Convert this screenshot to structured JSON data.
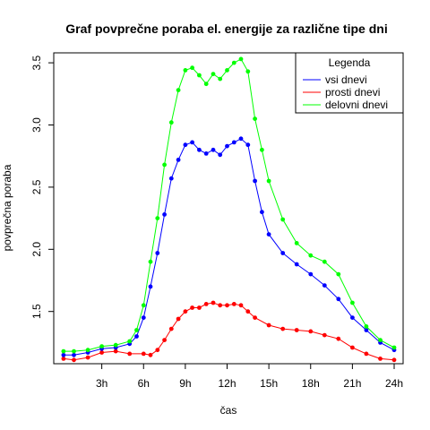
{
  "chart_data": {
    "type": "line",
    "title": "Graf povprečne poraba el. energije za različne tipe dni",
    "xlabel": "čas",
    "ylabel": "povprečna poraba",
    "xlim": [
      0,
      24
    ],
    "ylim": [
      1.08,
      3.58
    ],
    "xticks": [
      {
        "value": 3,
        "label": "3h"
      },
      {
        "value": 6,
        "label": "6h"
      },
      {
        "value": 9,
        "label": "9h"
      },
      {
        "value": 12,
        "label": "12h"
      },
      {
        "value": 15,
        "label": "15h"
      },
      {
        "value": 18,
        "label": "18h"
      },
      {
        "value": 21,
        "label": "21h"
      },
      {
        "value": 24,
        "label": "24h"
      }
    ],
    "yticks": [
      {
        "value": 1.5,
        "label": "1.5"
      },
      {
        "value": 2.0,
        "label": "2.0"
      },
      {
        "value": 2.5,
        "label": "2.5"
      },
      {
        "value": 3.0,
        "label": "3.0"
      },
      {
        "value": 3.5,
        "label": "3.5"
      }
    ],
    "grid": false,
    "legend": {
      "title": "Legenda",
      "position": "top-right"
    },
    "series": [
      {
        "name": "vsi dnevi",
        "color": "#0000ff",
        "x": [
          0.25,
          1,
          2,
          3,
          4,
          5,
          5.5,
          6,
          6.5,
          7,
          7.5,
          8,
          8.5,
          9,
          9.5,
          10,
          10.5,
          11,
          11.5,
          12,
          12.5,
          13,
          13.5,
          14,
          14.5,
          15,
          16,
          17,
          18,
          19,
          20,
          21,
          22,
          23,
          24
        ],
        "y": [
          1.15,
          1.15,
          1.17,
          1.2,
          1.21,
          1.24,
          1.3,
          1.45,
          1.7,
          1.97,
          2.28,
          2.57,
          2.72,
          2.84,
          2.86,
          2.8,
          2.77,
          2.8,
          2.76,
          2.83,
          2.86,
          2.89,
          2.84,
          2.55,
          2.3,
          2.12,
          1.97,
          1.88,
          1.8,
          1.71,
          1.6,
          1.45,
          1.35,
          1.25,
          1.19
        ]
      },
      {
        "name": "prosti dnevi",
        "color": "#ff0000",
        "x": [
          0.25,
          1,
          2,
          3,
          4,
          5,
          6,
          6.5,
          7,
          7.5,
          8,
          8.5,
          9,
          9.5,
          10,
          10.5,
          11,
          11.5,
          12,
          12.5,
          13,
          13.5,
          14,
          15,
          16,
          17,
          18,
          19,
          20,
          21,
          22,
          23,
          24
        ],
        "y": [
          1.12,
          1.11,
          1.13,
          1.17,
          1.18,
          1.16,
          1.16,
          1.15,
          1.19,
          1.27,
          1.36,
          1.44,
          1.5,
          1.53,
          1.53,
          1.56,
          1.57,
          1.55,
          1.55,
          1.56,
          1.55,
          1.5,
          1.45,
          1.39,
          1.36,
          1.35,
          1.34,
          1.31,
          1.28,
          1.21,
          1.16,
          1.12,
          1.11
        ]
      },
      {
        "name": "delovni dnevi",
        "color": "#00ff00",
        "x": [
          0.25,
          1,
          2,
          3,
          4,
          5,
          5.5,
          6,
          6.5,
          7,
          7.5,
          8,
          8.5,
          9,
          9.5,
          10,
          10.5,
          11,
          11.5,
          12,
          12.5,
          13,
          13.5,
          14,
          14.5,
          15,
          16,
          17,
          18,
          19,
          20,
          21,
          22,
          23,
          24
        ],
        "y": [
          1.18,
          1.18,
          1.19,
          1.22,
          1.23,
          1.26,
          1.35,
          1.55,
          1.9,
          2.25,
          2.68,
          3.02,
          3.28,
          3.44,
          3.46,
          3.4,
          3.33,
          3.41,
          3.37,
          3.44,
          3.5,
          3.53,
          3.43,
          3.05,
          2.8,
          2.55,
          2.24,
          2.05,
          1.95,
          1.9,
          1.8,
          1.57,
          1.38,
          1.27,
          1.21
        ]
      }
    ]
  }
}
